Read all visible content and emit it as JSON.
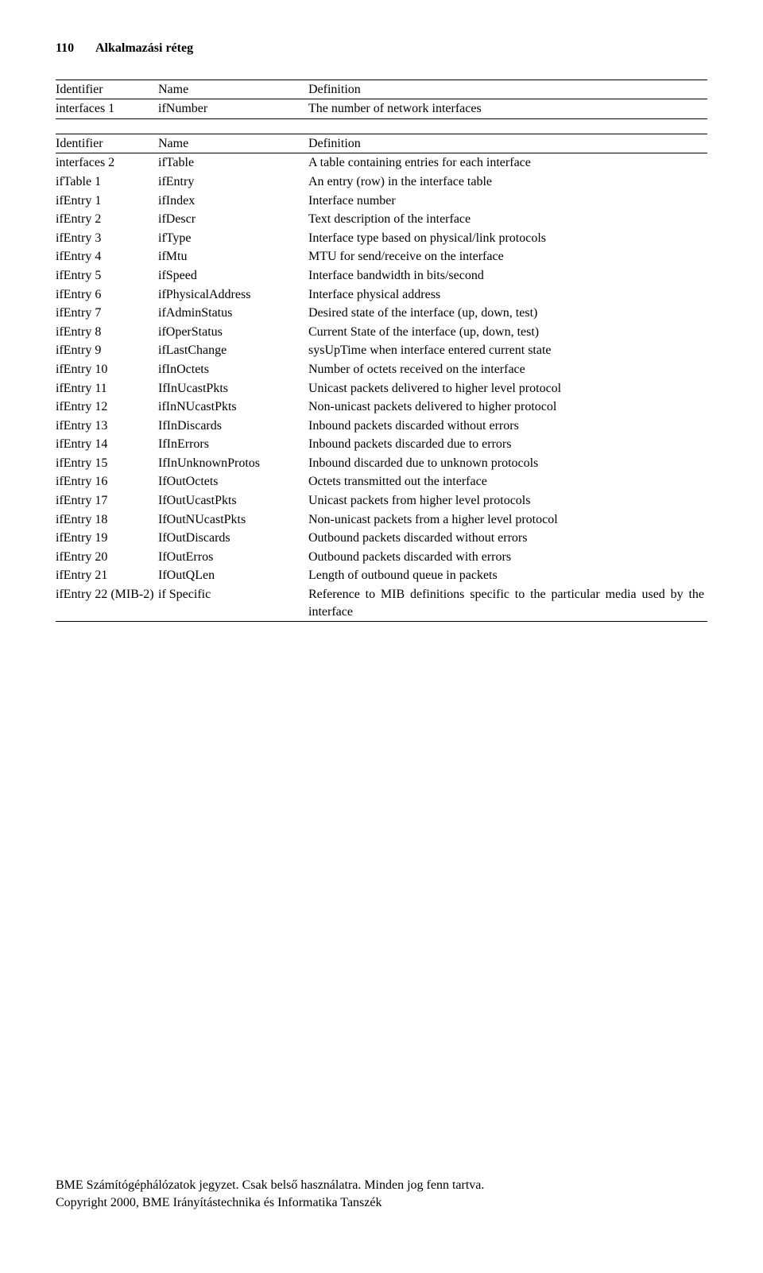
{
  "page_number": "110",
  "page_title": "Alkalmazási réteg",
  "table1": {
    "headers": [
      "Identifier",
      "Name",
      "Definition"
    ],
    "rows": [
      [
        "interfaces 1",
        "ifNumber",
        "The number of network interfaces"
      ]
    ]
  },
  "table2": {
    "headers": [
      "Identifier",
      "Name",
      "Definition"
    ],
    "rows": [
      [
        "interfaces 2",
        "ifTable",
        "A table containing entries for each interface"
      ],
      [
        "ifTable 1",
        "ifEntry",
        "An entry (row) in the interface table"
      ],
      [
        "ifEntry 1",
        "ifIndex",
        "Interface number"
      ],
      [
        "ifEntry 2",
        "ifDescr",
        "Text description of the interface"
      ],
      [
        "ifEntry 3",
        "ifType",
        "Interface type based on physical/link protocols"
      ],
      [
        "ifEntry 4",
        "ifMtu",
        "MTU for send/receive on the interface"
      ],
      [
        "ifEntry 5",
        "ifSpeed",
        "Interface bandwidth in bits/second"
      ],
      [
        "ifEntry 6",
        "ifPhysicalAddress",
        "Interface physical address"
      ],
      [
        "ifEntry 7",
        "ifAdminStatus",
        "Desired state of the interface (up, down, test)"
      ],
      [
        "ifEntry 8",
        "ifOperStatus",
        "Current State of the interface (up, down, test)"
      ],
      [
        "ifEntry 9",
        "ifLastChange",
        "sysUpTime when interface entered current state"
      ],
      [
        "ifEntry 10",
        "ifInOctets",
        "Number of octets received on the interface"
      ],
      [
        "ifEntry 11",
        "IfInUcastPkts",
        "Unicast packets delivered to higher level protocol"
      ],
      [
        "ifEntry 12",
        "ifInNUcastPkts",
        "Non-unicast packets delivered to higher protocol"
      ],
      [
        "ifEntry 13",
        "IfInDiscards",
        "Inbound packets discarded without errors"
      ],
      [
        "ifEntry 14",
        "IfInErrors",
        "Inbound packets discarded due to errors"
      ],
      [
        "ifEntry 15",
        "IfInUnknownProtos",
        "Inbound discarded due to unknown protocols"
      ],
      [
        "ifEntry 16",
        "IfOutOctets",
        "Octets transmitted out the interface"
      ],
      [
        "ifEntry 17",
        "IfOutUcastPkts",
        "Unicast packets from higher level protocols"
      ],
      [
        "ifEntry 18",
        "IfOutNUcastPkts",
        "Non-unicast packets from a higher level protocol"
      ],
      [
        "ifEntry 19",
        "IfOutDiscards",
        "Outbound packets discarded without errors"
      ],
      [
        "ifEntry 20",
        "IfOutErros",
        "Outbound packets discarded with errors"
      ],
      [
        "ifEntry 21",
        "IfOutQLen",
        "Length of outbound queue in packets"
      ],
      [
        "ifEntry 22 (MIB-2)",
        "if Specific",
        "Reference to MIB definitions specific to the particular media used by the interface"
      ]
    ]
  },
  "footer_line1": "BME Számítógéphálózatok jegyzet. Csak belső használatra. Minden jog fenn tartva.",
  "footer_line2": "Copyright 2000, BME Irányítástechnika és Informatika Tanszék"
}
